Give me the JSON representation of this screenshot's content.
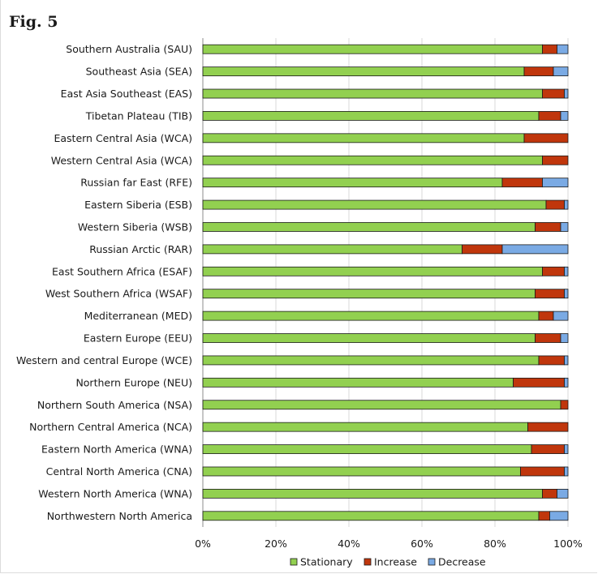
{
  "figure_label": "Fig. 5",
  "colors": {
    "Stationary": "#92d050",
    "Increase": "#c0360c",
    "Decrease": "#7aaae4"
  },
  "chart_data": {
    "type": "bar",
    "orientation": "horizontal",
    "stacked": true,
    "percent": true,
    "title": "",
    "xlabel": "",
    "ylabel": "",
    "xlim": [
      0,
      100
    ],
    "x_ticks": [
      "0%",
      "20%",
      "40%",
      "60%",
      "80%",
      "100%"
    ],
    "grid": true,
    "legend_position": "bottom",
    "categories": [
      "Southern Australia (SAU)",
      "Southeast Asia (SEA)",
      "East Asia Southeast  (EAS)",
      "Tibetan Plateau (TIB)",
      "Eastern Central Asia (WCA)",
      "Western Central Asia (WCA)",
      "Russian far East (RFE)",
      "Eastern Siberia (ESB)",
      "Western Siberia (WSB)",
      "Russian Arctic (RAR)",
      "East Southern Africa (ESAF)",
      "West Southern Africa (WSAF)",
      "Mediterranean (MED)",
      "Eastern Europe (EEU)",
      "Western and central Europe (WCE)",
      "Northern Europe (NEU)",
      "Northern South America (NSA)",
      "Northern Central America (NCA)",
      "Eastern North America (WNA)",
      "Central North America (CNA)",
      "Western North America (WNA)",
      "Northwestern North America"
    ],
    "series": [
      {
        "name": "Stationary",
        "values": [
          93,
          88,
          93,
          92,
          88,
          93,
          82,
          94,
          91,
          71,
          93,
          91,
          92,
          91,
          92,
          85,
          98,
          89,
          90,
          87,
          93,
          92
        ]
      },
      {
        "name": "Increase",
        "values": [
          4,
          8,
          6,
          6,
          12,
          7,
          11,
          5,
          7,
          11,
          6,
          8,
          4,
          7,
          7,
          14,
          2,
          11,
          9,
          12,
          4,
          3
        ]
      },
      {
        "name": "Decrease",
        "values": [
          3,
          4,
          1,
          2,
          0,
          0,
          7,
          1,
          2,
          18,
          1,
          1,
          4,
          2,
          1,
          1,
          0,
          0,
          1,
          1,
          3,
          5
        ]
      }
    ]
  }
}
